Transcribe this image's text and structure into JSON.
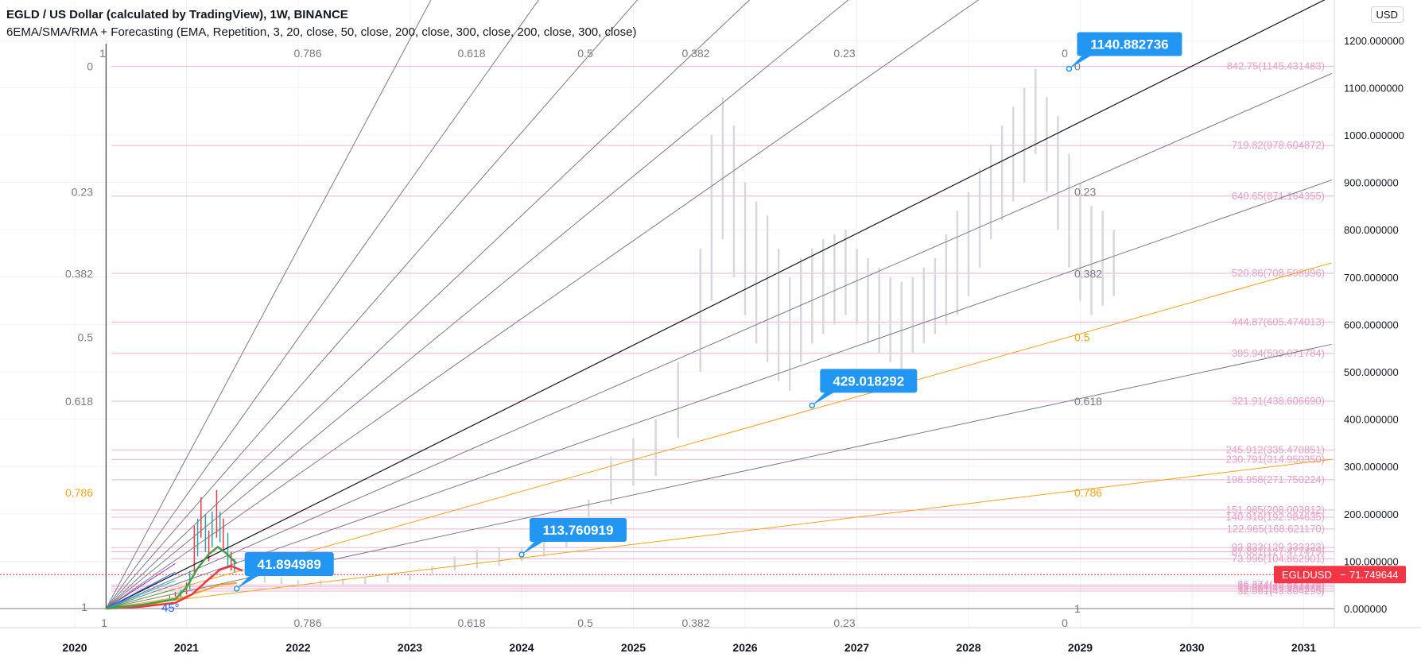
{
  "header": {
    "title": "EGLD / US Dollar (calculated by TradingView), 1W, BINANCE",
    "indicator": "6EMA/SMA/RMA + Forecasting (EMA, Repetition, 3, 20, close, 50, close, 200, close, 300, close, 200, close, 300, close)",
    "currency_button": "USD"
  },
  "colors": {
    "accent_blue": "#2196f3",
    "price_red": "#f23645",
    "ema_green": "#43a047",
    "fib_orange": "#f7a21b",
    "level_pink": "#e8a0c8"
  },
  "chart_data": {
    "type": "line",
    "symbol": "EGLDUSD",
    "x_ticks": [
      "2020",
      "2021",
      "2022",
      "2023",
      "2024",
      "2025",
      "2026",
      "2027",
      "2028",
      "2029",
      "2030",
      "2031"
    ],
    "y_ticks": [
      "0.000000",
      "100.000000",
      "200.000000",
      "300.000000",
      "400.000000",
      "500.000000",
      "600.000000",
      "700.000000",
      "800.000000",
      "900.000000",
      "1000.000000",
      "1100.000000",
      "1200.000000"
    ],
    "ylim": [
      -20,
      1260
    ],
    "last_price": {
      "label": "EGLDUSD",
      "value": "71.749644"
    },
    "fan_origin": {
      "x": 2020.28,
      "y": 0
    },
    "fan_top_labels": [
      "1",
      "0.786",
      "0.618",
      "0.5",
      "0.382",
      "0.23",
      "0"
    ],
    "fan_bottom_labels": [
      "1",
      "0.786",
      "0.618",
      "0.5",
      "0.382",
      "0.23",
      "0"
    ],
    "fan_left_labels": [
      {
        "label": "0",
        "y": 1145,
        "orange": false
      },
      {
        "label": "0.23",
        "y": 880,
        "orange": false
      },
      {
        "label": "0.382",
        "y": 707,
        "orange": false
      },
      {
        "label": "0.5",
        "y": 573,
        "orange": false
      },
      {
        "label": "0.618",
        "y": 438,
        "orange": false
      },
      {
        "label": "0.786",
        "y": 245,
        "orange": true
      }
    ],
    "fan_right_labels": [
      {
        "label": "0",
        "y": 1145,
        "orange": false
      },
      {
        "label": "0.23",
        "y": 880,
        "orange": false
      },
      {
        "label": "0.382",
        "y": 707,
        "orange": false
      },
      {
        "label": "0.5",
        "y": 573,
        "orange": true
      },
      {
        "label": "0.618",
        "y": 438,
        "orange": false
      },
      {
        "label": "0.786",
        "y": 245,
        "orange": true
      },
      {
        "label": "1",
        "y": 0,
        "orange": false
      }
    ],
    "corner_labels": {
      "bottom_origin": "1",
      "top_origin": "1",
      "left_origin": "1",
      "angle": "45°"
    },
    "callouts": [
      {
        "label": "1140.882736",
        "x": 2028.9,
        "y": 1140
      },
      {
        "label": "429.018292",
        "x": 2026.6,
        "y": 429
      },
      {
        "label": "113.760919",
        "x": 2024.0,
        "y": 114
      },
      {
        "label": "41.894989",
        "x": 2021.45,
        "y": 42
      }
    ],
    "levels": [
      {
        "label": "842.75(1145.431483)",
        "y": 1145
      },
      {
        "label": "719.82(978.604872)",
        "y": 978
      },
      {
        "label": "640.65(871.164355)",
        "y": 871
      },
      {
        "label": "520.86(708.598996)",
        "y": 708
      },
      {
        "label": "444.87(605.474013)",
        "y": 605
      },
      {
        "label": "395.94(539.071784)",
        "y": 539
      },
      {
        "label": "321.91(438.606690)",
        "y": 438
      },
      {
        "label": "245.912(335.470851)",
        "y": 335
      },
      {
        "label": "230.791(314.950350)",
        "y": 315
      },
      {
        "label": "198.958(271.750224)",
        "y": 272
      },
      {
        "label": "151.985(208.003812)",
        "y": 208
      },
      {
        "label": "140.916(192.984635)",
        "y": 193
      },
      {
        "label": "122.965(168.621170)",
        "y": 168
      },
      {
        "label": "92.833(129.333323)",
        "y": 129
      },
      {
        "label": "87.881(127.477479)",
        "y": 120
      },
      {
        "label": "73.996(104.862901)",
        "y": 105
      },
      {
        "label": "36.374(49.613174)",
        "y": 50
      },
      {
        "label": "33.984(46.364478)",
        "y": 46
      },
      {
        "label": "32.951(45.954284)",
        "y": 42
      },
      {
        "label": "32.061(43.804296)",
        "y": 37
      }
    ],
    "rays": [
      {
        "end": [
          2023.9,
          1600
        ],
        "color": "#787b86"
      },
      {
        "end": [
          2025.1,
          1600
        ],
        "color": "#787b86"
      },
      {
        "end": [
          2026.2,
          1600
        ],
        "color": "#787b86"
      },
      {
        "end": [
          2027.45,
          1600
        ],
        "color": "#787b86"
      },
      {
        "end": [
          2028.55,
          1600
        ],
        "color": "#787b86"
      },
      {
        "end": [
          2030.0,
          1600
        ],
        "color": "#787b86"
      },
      {
        "end": [
          2031.25,
          1293
        ],
        "color": "#131722"
      },
      {
        "end": [
          2031.25,
          1130
        ],
        "color": "#787b86"
      },
      {
        "end": [
          2031.25,
          905
        ],
        "color": "#787b86"
      },
      {
        "end": [
          2031.25,
          730
        ],
        "color": "#f7a21b"
      },
      {
        "end": [
          2031.25,
          558
        ],
        "color": "#787b86"
      },
      {
        "end": [
          2031.25,
          315
        ],
        "color": "#f7a21b"
      }
    ],
    "ema_green": [
      [
        2020.28,
        0
      ],
      [
        2020.6,
        8
      ],
      [
        2020.9,
        20
      ],
      [
        2021.0,
        45
      ],
      [
        2021.1,
        85
      ],
      [
        2021.2,
        115
      ],
      [
        2021.28,
        130
      ],
      [
        2021.35,
        118
      ],
      [
        2021.45,
        95
      ]
    ],
    "ema_red": [
      [
        2020.28,
        0
      ],
      [
        2020.6,
        4
      ],
      [
        2020.9,
        12
      ],
      [
        2021.05,
        30
      ],
      [
        2021.2,
        62
      ],
      [
        2021.3,
        82
      ],
      [
        2021.4,
        90
      ],
      [
        2021.5,
        80
      ]
    ],
    "ema_orange": [
      [
        2020.28,
        0
      ],
      [
        2020.7,
        10
      ],
      [
        2020.95,
        22
      ],
      [
        2021.15,
        38
      ],
      [
        2021.3,
        50
      ],
      [
        2021.45,
        54
      ]
    ],
    "candles_history": [
      [
        2020.85,
        20,
        28
      ],
      [
        2020.9,
        25,
        35
      ],
      [
        2020.95,
        22,
        40
      ],
      [
        2021.0,
        30,
        55
      ],
      [
        2021.03,
        40,
        80
      ],
      [
        2021.07,
        70,
        175
      ],
      [
        2021.1,
        110,
        190
      ],
      [
        2021.13,
        150,
        235
      ],
      [
        2021.17,
        120,
        200
      ],
      [
        2021.2,
        100,
        165
      ],
      [
        2021.23,
        130,
        205
      ],
      [
        2021.27,
        150,
        250
      ],
      [
        2021.3,
        140,
        205
      ],
      [
        2021.33,
        120,
        190
      ],
      [
        2021.37,
        90,
        160
      ],
      [
        2021.4,
        80,
        120
      ],
      [
        2021.43,
        75,
        105
      ]
    ],
    "forecast_candles": [
      [
        2021.55,
        60,
        75
      ],
      [
        2021.7,
        55,
        70
      ],
      [
        2021.85,
        52,
        65
      ],
      [
        2022.0,
        50,
        60
      ],
      [
        2022.2,
        48,
        60
      ],
      [
        2022.4,
        50,
        62
      ],
      [
        2022.6,
        52,
        65
      ],
      [
        2022.8,
        55,
        70
      ],
      [
        2023.0,
        60,
        75
      ],
      [
        2023.2,
        70,
        90
      ],
      [
        2023.4,
        80,
        110
      ],
      [
        2023.6,
        85,
        125
      ],
      [
        2023.8,
        90,
        130
      ],
      [
        2024.0,
        100,
        130
      ],
      [
        2024.2,
        110,
        150
      ],
      [
        2024.4,
        130,
        190
      ],
      [
        2024.6,
        150,
        230
      ],
      [
        2024.8,
        220,
        320
      ],
      [
        2025.0,
        260,
        360
      ],
      [
        2025.2,
        280,
        400
      ],
      [
        2025.4,
        360,
        520
      ],
      [
        2025.6,
        500,
        760
      ],
      [
        2025.7,
        650,
        1000
      ],
      [
        2025.8,
        780,
        1080
      ],
      [
        2025.9,
        700,
        1020
      ],
      [
        2026.0,
        620,
        900
      ],
      [
        2026.1,
        560,
        860
      ],
      [
        2026.2,
        520,
        830
      ],
      [
        2026.3,
        480,
        760
      ],
      [
        2026.4,
        460,
        700
      ],
      [
        2026.5,
        520,
        740
      ],
      [
        2026.6,
        560,
        760
      ],
      [
        2026.7,
        580,
        780
      ],
      [
        2026.8,
        600,
        790
      ],
      [
        2026.9,
        620,
        800
      ],
      [
        2027.0,
        600,
        760
      ],
      [
        2027.1,
        560,
        740
      ],
      [
        2027.2,
        540,
        720
      ],
      [
        2027.3,
        520,
        700
      ],
      [
        2027.4,
        500,
        690
      ],
      [
        2027.5,
        540,
        700
      ],
      [
        2027.6,
        560,
        720
      ],
      [
        2027.7,
        580,
        740
      ],
      [
        2027.8,
        600,
        790
      ],
      [
        2027.9,
        620,
        840
      ],
      [
        2028.0,
        660,
        880
      ],
      [
        2028.1,
        720,
        930
      ],
      [
        2028.2,
        780,
        980
      ],
      [
        2028.3,
        820,
        1020
      ],
      [
        2028.4,
        860,
        1060
      ],
      [
        2028.5,
        900,
        1100
      ],
      [
        2028.6,
        960,
        1140
      ],
      [
        2028.7,
        880,
        1080
      ],
      [
        2028.8,
        800,
        1040
      ],
      [
        2028.9,
        720,
        960
      ],
      [
        2029.0,
        650,
        900
      ],
      [
        2029.1,
        620,
        850
      ],
      [
        2029.2,
        640,
        840
      ],
      [
        2029.3,
        660,
        800
      ]
    ]
  }
}
